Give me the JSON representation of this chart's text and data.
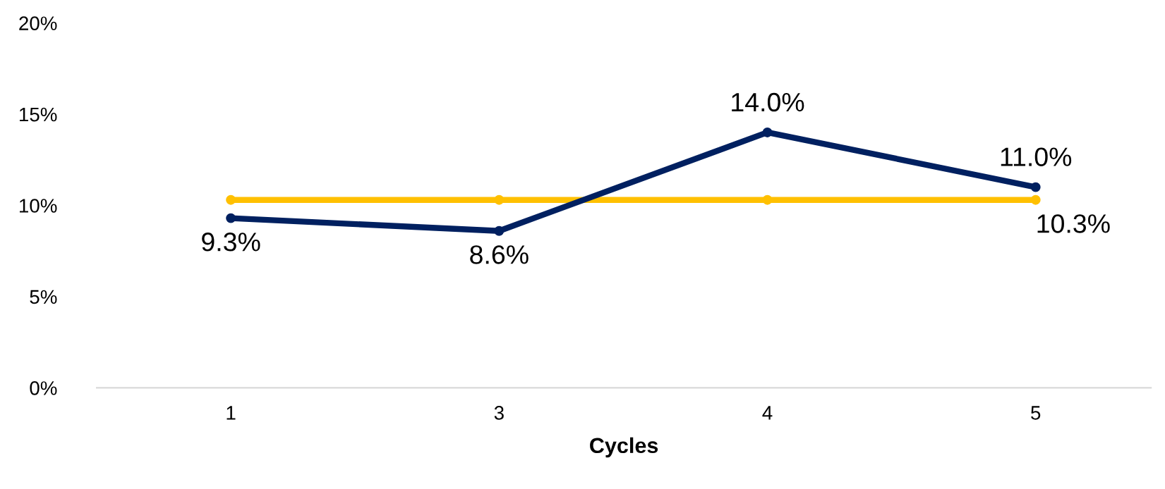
{
  "chart_data": {
    "type": "line",
    "xlabel": "Cycles",
    "categories": [
      "1",
      "3",
      "4",
      "5"
    ],
    "series": [
      {
        "color": "#002060",
        "values": [
          9.3,
          8.6,
          14.0,
          11.0
        ],
        "value_labels": [
          "9.3%",
          "8.6%",
          "14.0%",
          "11.0%"
        ]
      },
      {
        "color": "#ffc000",
        "values": [
          10.3,
          10.3,
          10.3,
          10.3
        ],
        "value_labels": [
          null,
          null,
          null,
          "10.3%"
        ]
      }
    ],
    "ylim": [
      0,
      20
    ],
    "yticks": [
      {
        "value": 0,
        "label": "0%"
      },
      {
        "value": 5,
        "label": "5%"
      },
      {
        "value": 10,
        "label": "10%"
      },
      {
        "value": 15,
        "label": "15%"
      },
      {
        "value": 20,
        "label": "20%"
      }
    ],
    "marker": "circle",
    "line_style": "solid",
    "grid": false,
    "legend": false
  }
}
